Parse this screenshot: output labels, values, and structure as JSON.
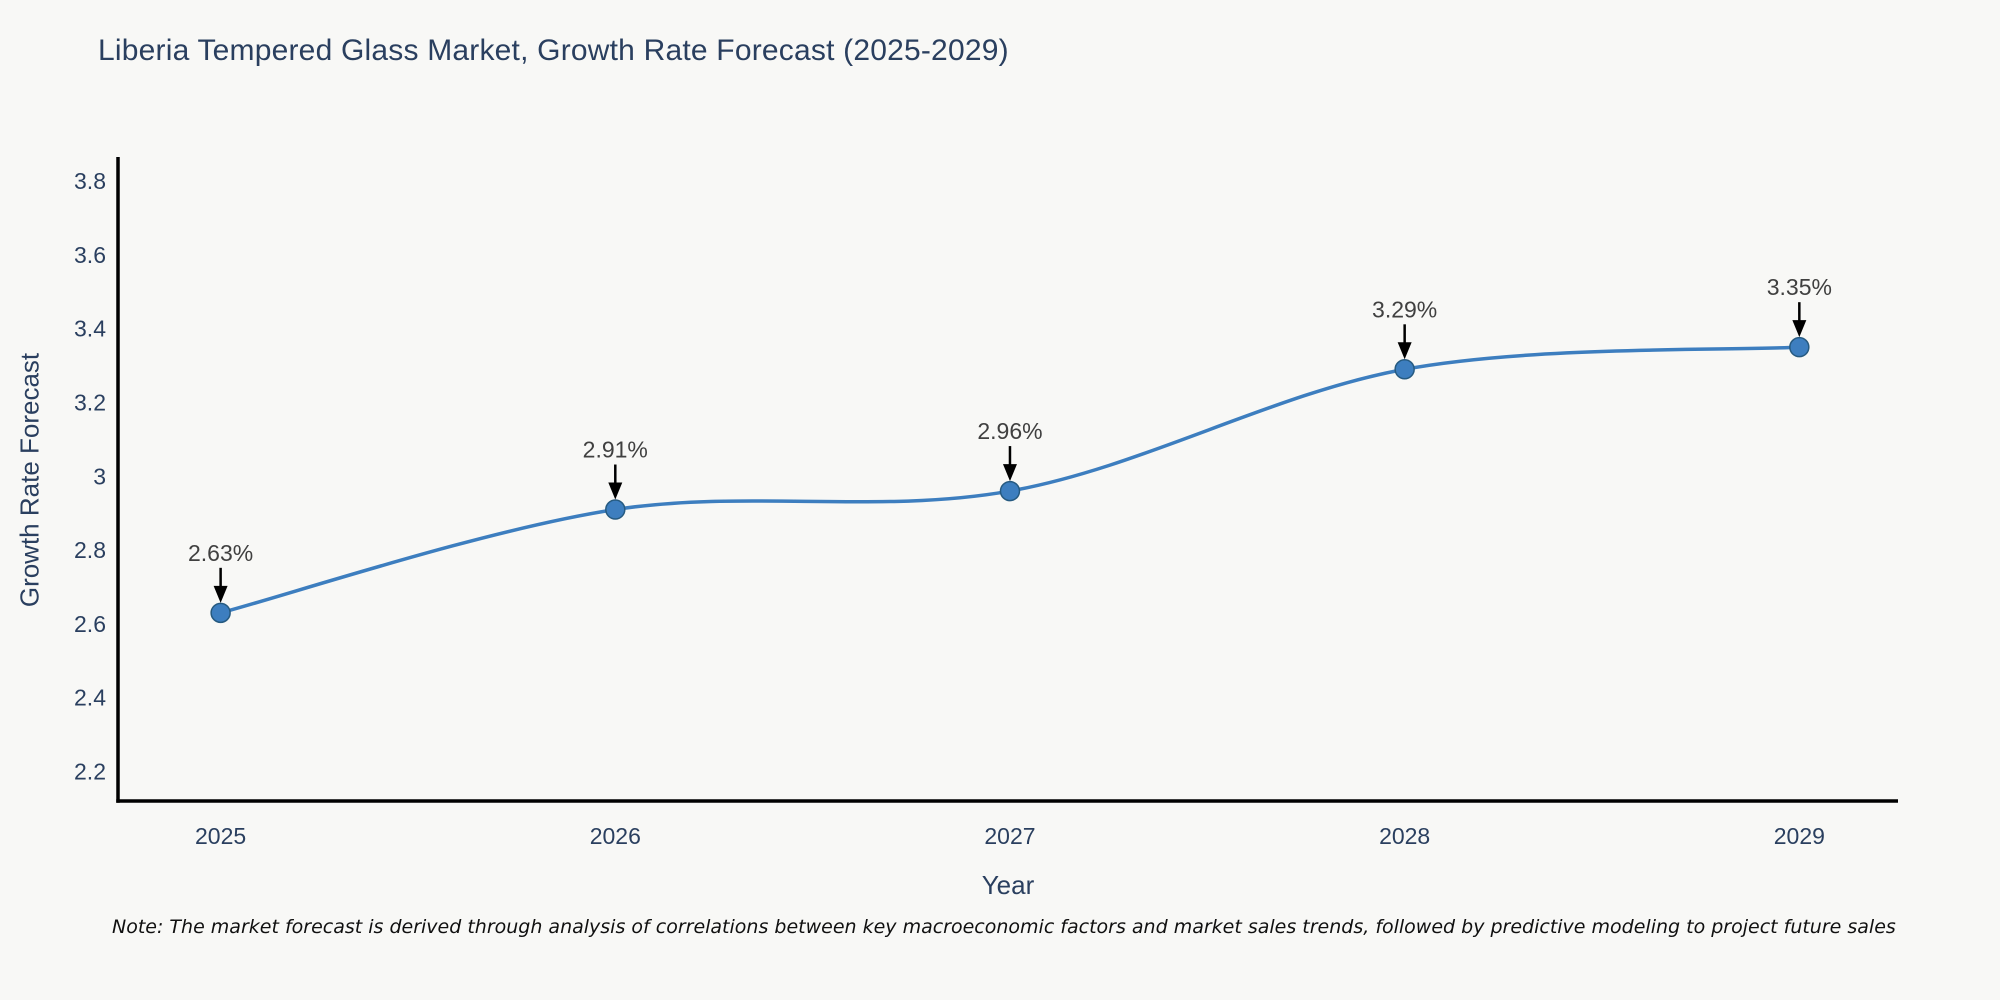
{
  "page": {
    "title": "Liberia Tempered Glass Market, Growth Rate Forecast (2025-2029)",
    "note": "Note: The market forecast is derived through analysis of correlations between key macroeconomic factors and market sales trends, followed by predictive modeling to project future sales"
  },
  "chart_data": {
    "type": "line",
    "title": "Liberia Tempered Glass Market, Growth Rate Forecast (2025-2029)",
    "xlabel": "Year",
    "ylabel": "Growth Rate Forecast",
    "x": [
      2025,
      2026,
      2027,
      2028,
      2029
    ],
    "series": [
      {
        "name": "Growth Rate Forecast",
        "values": [
          2.63,
          2.91,
          2.96,
          3.29,
          3.35
        ]
      }
    ],
    "point_labels": [
      "2.63%",
      "2.91%",
      "2.96%",
      "3.29%",
      "3.35%"
    ],
    "y_ticks": [
      3.8,
      3.6,
      3.4,
      3.2,
      3,
      2.8,
      2.6,
      2.4,
      2.2
    ],
    "ylim": [
      2.12,
      3.86
    ],
    "xlim": [
      2024.74,
      2029.25
    ],
    "grid": false,
    "legend_position": "none",
    "line_shape": "spline",
    "colors": {
      "line": "#3d7ebf",
      "marker_fill": "#3d7ebf",
      "marker_edge": "#265a80",
      "annotation_arrow": "#000000",
      "annotation_text": "#404040",
      "axis_spine": "#000000",
      "label_text": "#2a3f5f",
      "background": "#f8f8f6"
    }
  }
}
